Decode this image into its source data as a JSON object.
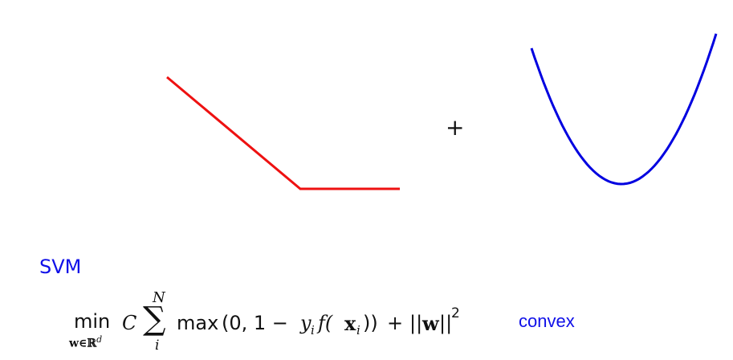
{
  "colors": {
    "hinge_curve": "#ee1111",
    "regularizer_curve": "#0000e0",
    "accent_text": "#1010e8",
    "math_text": "#111111"
  },
  "plus_sign": "+",
  "svm_label": "SVM",
  "convex_label": "convex",
  "formula": {
    "min": "min",
    "min_subscript": "w∈ℝ",
    "min_subscript_power": "d",
    "constant": "C",
    "sum_symbol": "∑",
    "sum_upper": "N",
    "sum_lower": "i",
    "max_fn": "max",
    "max_args_open": "(0, 1 −",
    "yi": "y",
    "yi_sub": "i",
    "fx": "f(",
    "xi": "x",
    "xi_sub": "i",
    "close_parens": "))",
    "plus": "+",
    "norm_open": "||",
    "w": "w",
    "norm_close": "||",
    "power": "2"
  }
}
